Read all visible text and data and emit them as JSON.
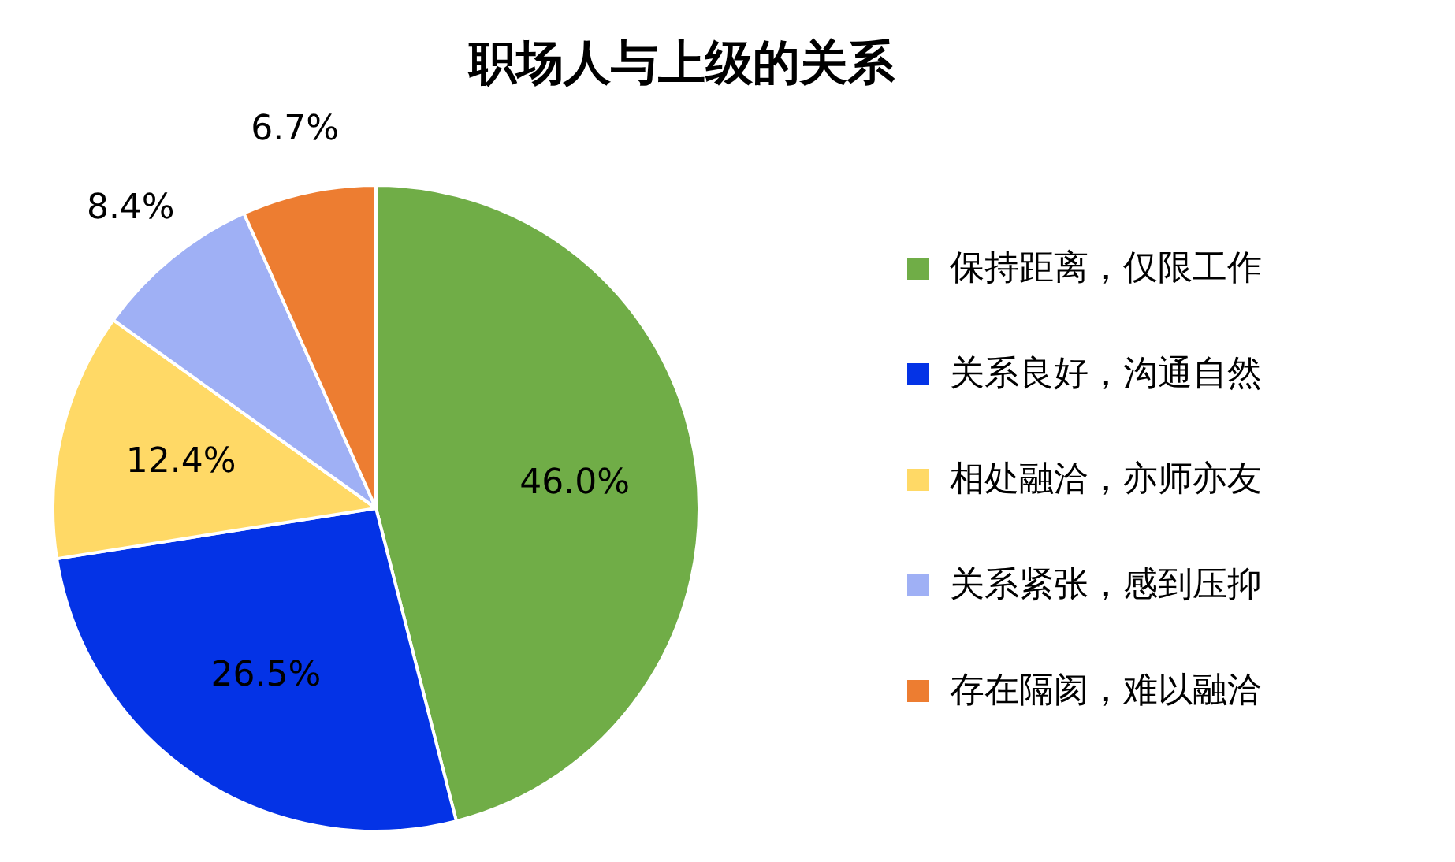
{
  "chart_data": {
    "type": "pie",
    "title": "职场人与上级的关系",
    "categories": [
      "保持距离，仅限工作",
      "关系良好，沟通自然",
      "相处融洽，亦师亦友",
      "关系紧张，感到压抑",
      "存在隔阂，难以融洽"
    ],
    "values": [
      46.0,
      26.5,
      12.4,
      8.4,
      6.7
    ],
    "colors": [
      "#70ad47",
      "#0433e6",
      "#ffd966",
      "#9fb0f5",
      "#ed7d31"
    ],
    "value_labels": [
      "46.0%",
      "26.5%",
      "12.4%",
      "8.4%",
      "6.7%"
    ],
    "legend": "right"
  }
}
